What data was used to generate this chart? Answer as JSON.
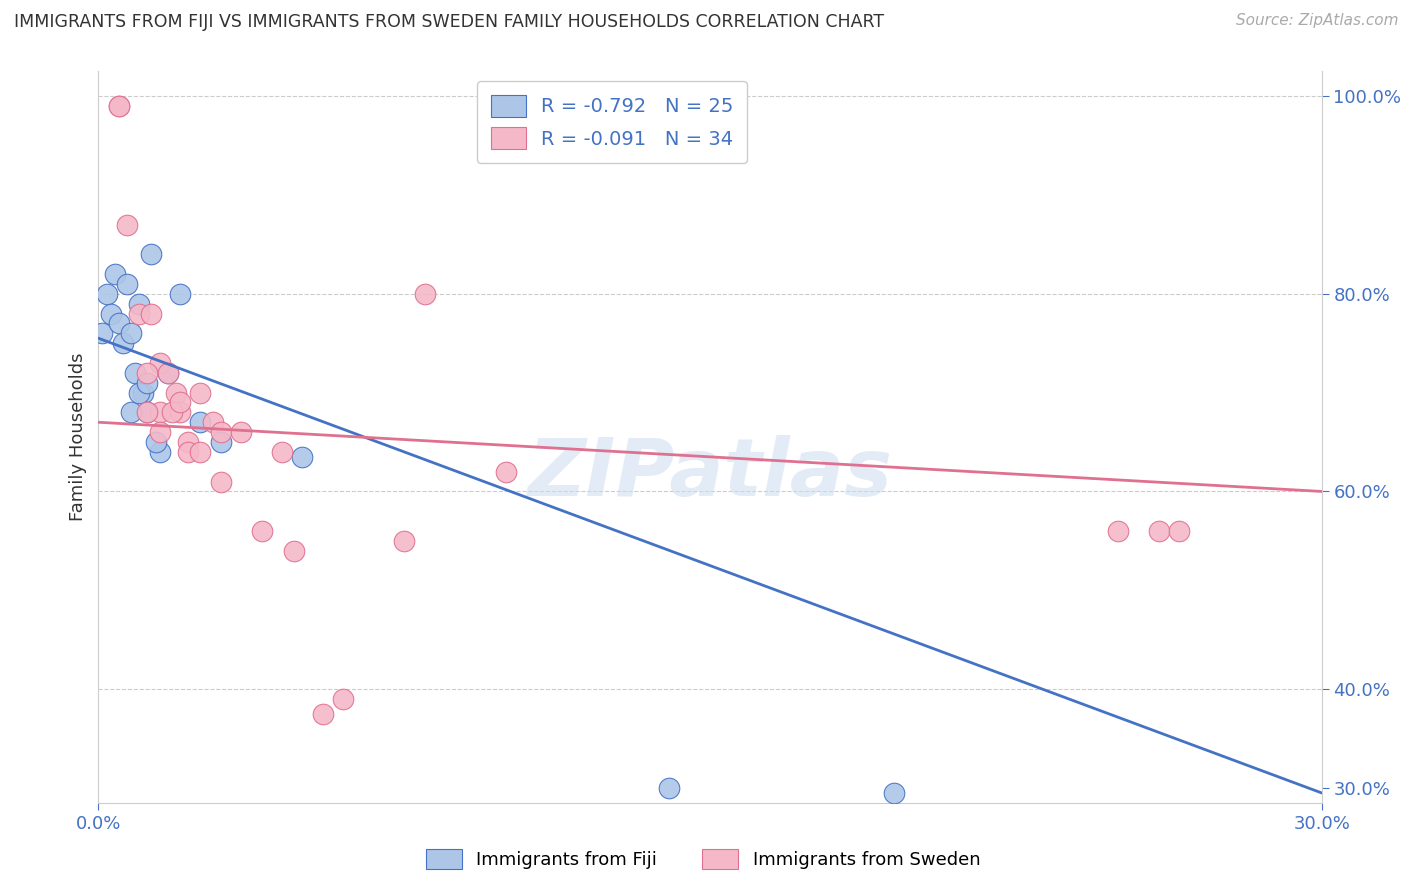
{
  "title": "IMMIGRANTS FROM FIJI VS IMMIGRANTS FROM SWEDEN FAMILY HOUSEHOLDS CORRELATION CHART",
  "source": "Source: ZipAtlas.com",
  "ylabel": "Family Households",
  "legend_label_fiji": "Immigrants from Fiji",
  "legend_label_sweden": "Immigrants from Sweden",
  "fiji_R": -0.792,
  "fiji_N": 25,
  "sweden_R": -0.091,
  "sweden_N": 34,
  "fiji_color": "#adc6e8",
  "fiji_line_color": "#4472c4",
  "sweden_color": "#f4b8c8",
  "sweden_line_color": "#e07090",
  "xmin": 0.0,
  "xmax": 0.3,
  "ymin": 0.285,
  "ymax": 1.025,
  "right_ytick_vals": [
    1.0,
    0.8,
    0.6,
    0.4,
    0.3
  ],
  "right_ytick_labels": [
    "100.0%",
    "80.0%",
    "60.0%",
    "40.0%",
    "30.0%"
  ],
  "fiji_x": [
    0.001,
    0.002,
    0.003,
    0.004,
    0.005,
    0.006,
    0.007,
    0.008,
    0.009,
    0.01,
    0.011,
    0.012,
    0.013,
    0.015,
    0.017,
    0.02,
    0.025,
    0.03,
    0.008,
    0.01,
    0.012,
    0.014,
    0.05,
    0.14,
    0.195
  ],
  "fiji_y": [
    0.76,
    0.8,
    0.78,
    0.82,
    0.77,
    0.75,
    0.81,
    0.76,
    0.72,
    0.79,
    0.7,
    0.68,
    0.84,
    0.64,
    0.72,
    0.8,
    0.67,
    0.65,
    0.68,
    0.7,
    0.71,
    0.65,
    0.635,
    0.3,
    0.295
  ],
  "sweden_x": [
    0.005,
    0.005,
    0.007,
    0.01,
    0.013,
    0.015,
    0.017,
    0.019,
    0.02,
    0.022,
    0.025,
    0.028,
    0.03,
    0.035,
    0.04,
    0.045,
    0.012,
    0.015,
    0.018,
    0.02,
    0.022,
    0.025,
    0.08,
    0.1,
    0.012,
    0.015,
    0.075,
    0.03,
    0.048,
    0.055,
    0.06,
    0.25,
    0.26,
    0.265
  ],
  "sweden_y": [
    0.99,
    0.99,
    0.87,
    0.78,
    0.78,
    0.73,
    0.72,
    0.7,
    0.68,
    0.65,
    0.7,
    0.67,
    0.66,
    0.66,
    0.56,
    0.64,
    0.72,
    0.68,
    0.68,
    0.69,
    0.64,
    0.64,
    0.8,
    0.62,
    0.68,
    0.66,
    0.55,
    0.61,
    0.54,
    0.375,
    0.39,
    0.56,
    0.56,
    0.56
  ],
  "fiji_trendline_x": [
    0.0,
    0.3
  ],
  "fiji_trendline_y": [
    0.755,
    0.295
  ],
  "sweden_trendline_x": [
    0.0,
    0.3
  ],
  "sweden_trendline_y": [
    0.67,
    0.6
  ],
  "watermark": "ZIPatlas",
  "background_color": "#ffffff",
  "grid_color": "#cccccc",
  "title_color": "#333333",
  "axis_color": "#4472c4"
}
